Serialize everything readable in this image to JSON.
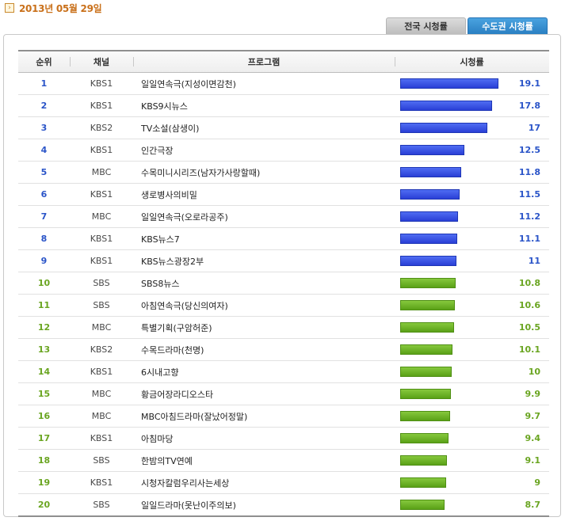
{
  "date": "2013년 05월 29일",
  "tabs": [
    {
      "label": "전국 시청률",
      "active": false
    },
    {
      "label": "수도권 시청률",
      "active": true
    }
  ],
  "table": {
    "headers": {
      "rank": "순위",
      "channel": "채널",
      "program": "프로그램",
      "rating": "시청률"
    },
    "max_rating": 19.1,
    "rows": [
      {
        "rank": "1",
        "channel": "KBS1",
        "program": "일일연속극(지성이면감천)",
        "rating": "19.1"
      },
      {
        "rank": "2",
        "channel": "KBS1",
        "program": "KBS9시뉴스",
        "rating": "17.8"
      },
      {
        "rank": "3",
        "channel": "KBS2",
        "program": "TV소설(삼생이)",
        "rating": "17"
      },
      {
        "rank": "4",
        "channel": "KBS1",
        "program": "인간극장",
        "rating": "12.5"
      },
      {
        "rank": "5",
        "channel": "MBC",
        "program": "수목미니시리즈(남자가사랑할때)",
        "rating": "11.8"
      },
      {
        "rank": "6",
        "channel": "KBS1",
        "program": "생로병사의비밀",
        "rating": "11.5"
      },
      {
        "rank": "7",
        "channel": "MBC",
        "program": "일일연속극(오로라공주)",
        "rating": "11.2"
      },
      {
        "rank": "8",
        "channel": "KBS1",
        "program": "KBS뉴스7",
        "rating": "11.1"
      },
      {
        "rank": "9",
        "channel": "KBS1",
        "program": "KBS뉴스광장2부",
        "rating": "11"
      },
      {
        "rank": "10",
        "channel": "SBS",
        "program": "SBS8뉴스",
        "rating": "10.8"
      },
      {
        "rank": "11",
        "channel": "SBS",
        "program": "아침연속극(당신의여자)",
        "rating": "10.6"
      },
      {
        "rank": "12",
        "channel": "MBC",
        "program": "특별기획(구암허준)",
        "rating": "10.5"
      },
      {
        "rank": "13",
        "channel": "KBS2",
        "program": "수목드라마(천명)",
        "rating": "10.1"
      },
      {
        "rank": "14",
        "channel": "KBS1",
        "program": "6시내고향",
        "rating": "10"
      },
      {
        "rank": "15",
        "channel": "MBC",
        "program": "황금어장라디오스타",
        "rating": "9.9"
      },
      {
        "rank": "16",
        "channel": "MBC",
        "program": "MBC아침드라마(잘났어정말)",
        "rating": "9.7"
      },
      {
        "rank": "17",
        "channel": "KBS1",
        "program": "아침마당",
        "rating": "9.4"
      },
      {
        "rank": "18",
        "channel": "SBS",
        "program": "한밤의TV연예",
        "rating": "9.1"
      },
      {
        "rank": "19",
        "channel": "KBS1",
        "program": "시청자칼럼우리사는세상",
        "rating": "9"
      },
      {
        "rank": "20",
        "channel": "SBS",
        "program": "일일드라마(못난이주의보)",
        "rating": "8.7"
      }
    ]
  },
  "colors": {
    "top_tier": "#2a54c8",
    "rest": "#6aa521",
    "date": "#c9701a"
  }
}
